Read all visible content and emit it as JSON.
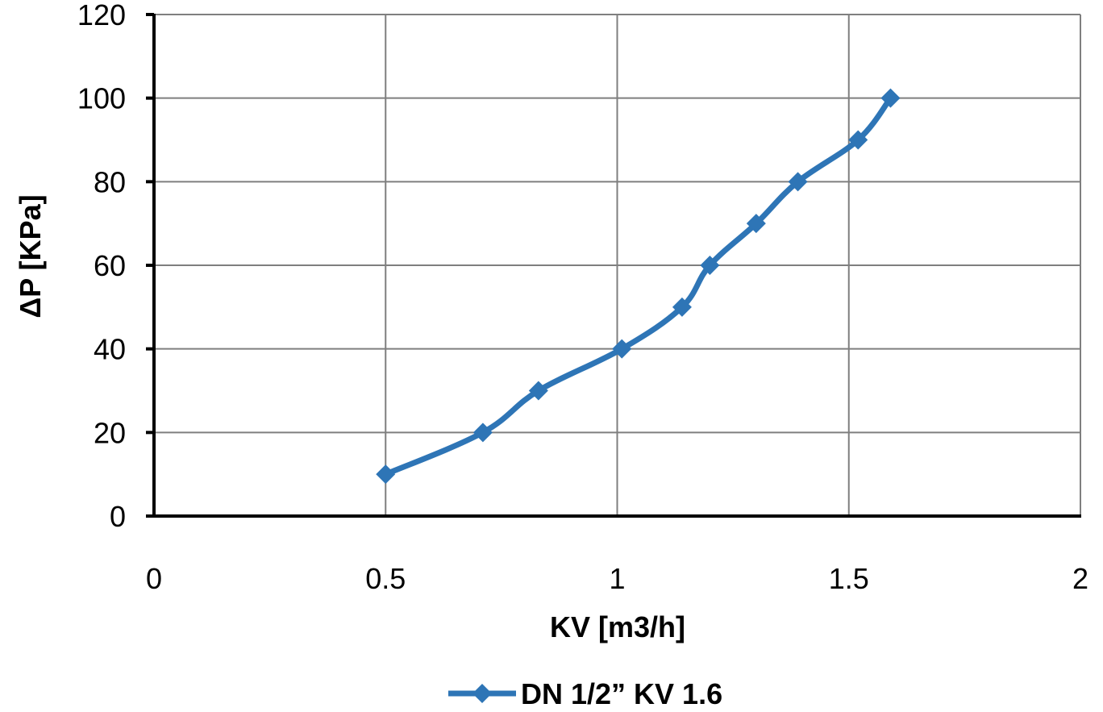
{
  "chart_data": {
    "type": "line",
    "xlabel": "KV [m3/h]",
    "ylabel": "ΔP [KPa]",
    "xlim": [
      0,
      2
    ],
    "ylim": [
      0,
      120
    ],
    "xticks": [
      "0",
      "0.5",
      "1",
      "1.5",
      "2"
    ],
    "yticks": [
      "0",
      "20",
      "40",
      "60",
      "80",
      "100",
      "120"
    ],
    "grid": true,
    "legend_position": "bottom",
    "series": [
      {
        "name": "DN 1/2” KV 1.6",
        "color": "#2E75B6",
        "marker": "diamond",
        "smooth": true,
        "x": [
          0.5,
          0.71,
          0.83,
          1.01,
          1.14,
          1.2,
          1.3,
          1.39,
          1.52,
          1.59
        ],
        "y": [
          10,
          20,
          30,
          40,
          50,
          60,
          70,
          80,
          90,
          100
        ]
      }
    ]
  }
}
